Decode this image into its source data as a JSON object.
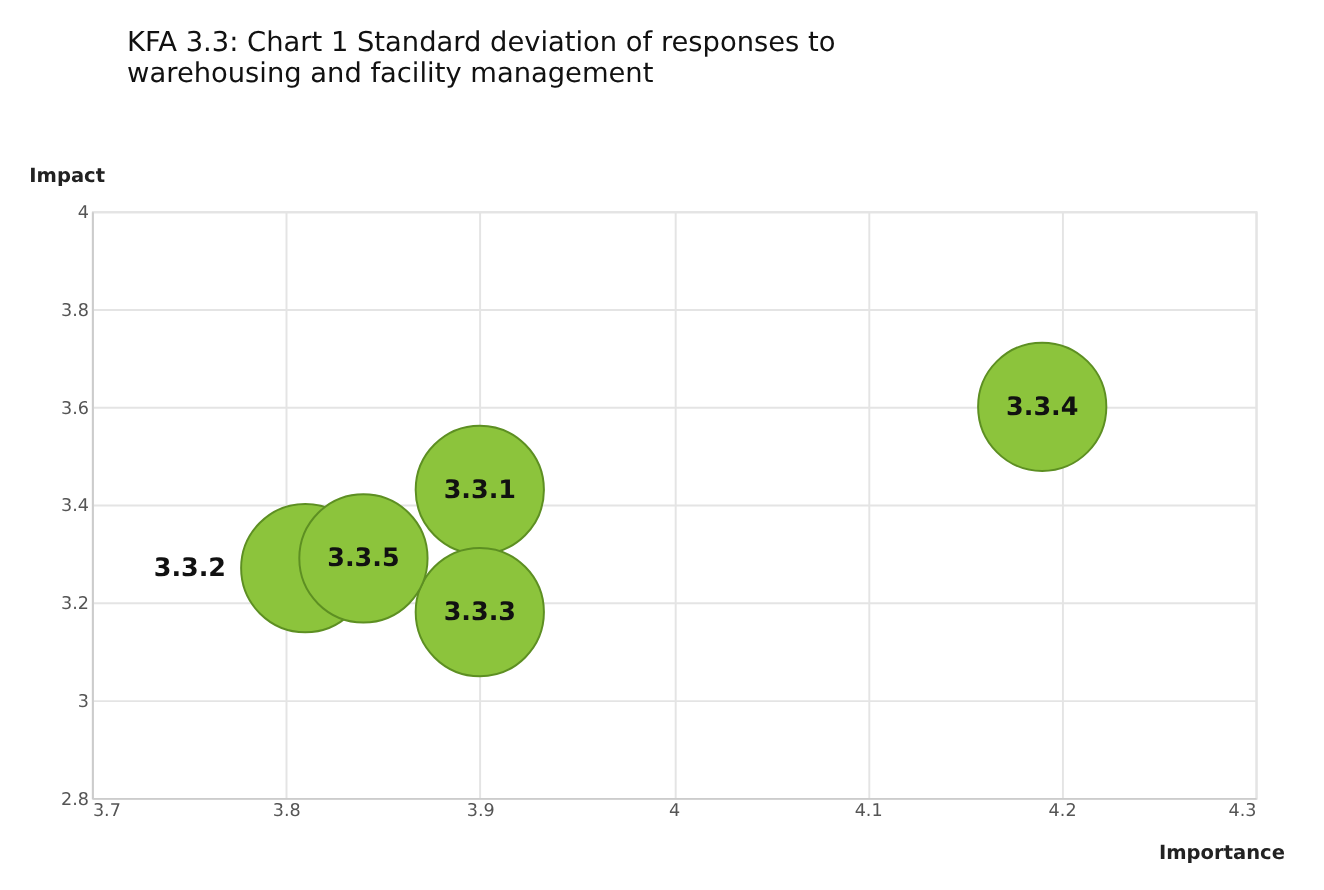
{
  "chart_data": {
    "type": "bubble",
    "title": "KFA 3.3: Chart 1 Standard deviation of responses to warehousing and facility management",
    "xlabel": "Importance",
    "ylabel": "Impact",
    "series": [
      {
        "name": "3.3.4",
        "color": "#8cc43c",
        "x": [
          4.19
        ],
        "values": [
          3.6
        ],
        "sizes": [
          1
        ]
      },
      {
        "name": "3.3.1",
        "color": "#8cc43c",
        "x": [
          3.9
        ],
        "values": [
          3.43
        ],
        "sizes": [
          1
        ]
      },
      {
        "name": "3.3.2",
        "color": "#8cc43c",
        "x": [
          3.81
        ],
        "values": [
          3.27
        ],
        "sizes": [
          1
        ]
      },
      {
        "name": "3.3.3",
        "color": "#8cc43c",
        "x": [
          3.9
        ],
        "values": [
          3.18
        ],
        "sizes": [
          1
        ]
      },
      {
        "name": "3.3.5",
        "color": "#8cc43c",
        "x": [
          3.84
        ],
        "values": [
          3.29
        ],
        "sizes": [
          1
        ]
      }
    ],
    "xlim": [
      3.7,
      4.3
    ],
    "xticks": [
      3.7,
      3.8,
      3.9,
      4,
      4.1,
      4.2,
      4.3
    ],
    "ylim": [
      2.8,
      4
    ],
    "yticks": [
      2.8,
      3,
      3.2,
      3.4,
      3.6,
      3.8,
      4
    ],
    "grid": true,
    "marker": "circle"
  }
}
